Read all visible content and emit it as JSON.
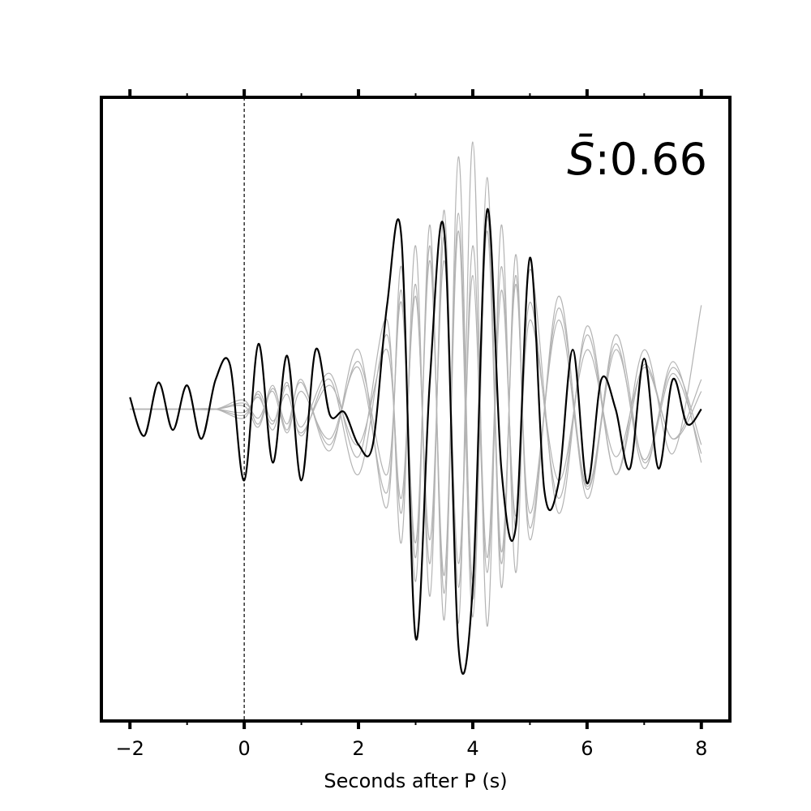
{
  "chart_data": {
    "type": "line",
    "title": "",
    "xlabel": "Seconds after P (s)",
    "ylabel": "",
    "xlim": [
      -2.5,
      8.5
    ],
    "ylim": [
      -1.05,
      1.05
    ],
    "x_ticks": [
      -2,
      0,
      2,
      4,
      6,
      8
    ],
    "x_tick_labels": [
      "−2",
      "0",
      "2",
      "4",
      "6",
      "8"
    ],
    "y_ticks_shown": false,
    "grid": false,
    "legend": "none",
    "reference_line": {
      "x": 0,
      "style": "dashed",
      "color": "#000000"
    },
    "annotation": {
      "symbol": "S̄",
      "separator": ":",
      "value": "0.66",
      "placement": "top-right"
    },
    "colors": {
      "main": "#000000",
      "background_traces": "#b3b3b3"
    },
    "series": [
      {
        "role": "main",
        "x": [
          -2.0,
          -1.75,
          -1.5,
          -1.25,
          -1.0,
          -0.75,
          -0.5,
          -0.25,
          0.0,
          0.25,
          0.5,
          0.75,
          1.0,
          1.25,
          1.5,
          1.75,
          2.0,
          2.25,
          2.5,
          2.75,
          3.0,
          3.25,
          3.5,
          3.75,
          4.0,
          4.25,
          4.5,
          4.75,
          5.0,
          5.25,
          5.5,
          5.75,
          6.0,
          6.25,
          6.5,
          6.75,
          7.0,
          7.25,
          7.5,
          7.75,
          8.0
        ],
        "y": [
          0.04,
          -0.09,
          0.09,
          -0.07,
          0.08,
          -0.1,
          0.1,
          0.15,
          -0.24,
          0.22,
          -0.18,
          0.18,
          -0.24,
          0.2,
          -0.02,
          -0.01,
          -0.12,
          -0.12,
          0.35,
          0.58,
          -0.77,
          0.1,
          0.6,
          -0.8,
          -0.6,
          0.67,
          -0.2,
          -0.4,
          0.51,
          -0.27,
          -0.25,
          0.2,
          -0.25,
          0.1,
          0.0,
          -0.2,
          0.17,
          -0.2,
          0.1,
          -0.05,
          0.0
        ]
      },
      {
        "role": "background",
        "x": [
          -2.0,
          -1.5,
          -1.0,
          -0.5,
          0.0,
          0.25,
          0.5,
          0.75,
          1.0,
          1.5,
          2.0,
          2.5,
          2.75,
          3.0,
          3.25,
          3.5,
          3.75,
          4.0,
          4.25,
          4.5,
          4.75,
          5.0,
          5.5,
          6.0,
          6.5,
          7.0,
          7.5,
          8.0
        ],
        "y": [
          0.0,
          0.0,
          0.0,
          0.0,
          -0.02,
          0.05,
          -0.07,
          0.08,
          -0.06,
          0.12,
          -0.16,
          0.3,
          -0.45,
          0.55,
          -0.63,
          0.67,
          -0.72,
          0.9,
          -0.73,
          0.62,
          -0.55,
          0.47,
          -0.35,
          0.28,
          -0.22,
          0.2,
          -0.15,
          0.35
        ]
      },
      {
        "role": "background",
        "x": [
          -2.0,
          -1.5,
          -1.0,
          -0.5,
          0.0,
          0.25,
          0.5,
          0.75,
          1.0,
          1.5,
          2.0,
          2.5,
          2.75,
          3.0,
          3.25,
          3.5,
          3.75,
          4.0,
          4.25,
          4.5,
          4.75,
          5.0,
          5.5,
          6.0,
          6.5,
          7.0,
          7.5,
          8.0
        ],
        "y": [
          0.0,
          0.0,
          0.0,
          0.0,
          0.03,
          -0.05,
          0.08,
          -0.07,
          0.1,
          -0.14,
          0.2,
          -0.33,
          0.48,
          -0.58,
          0.62,
          -0.71,
          0.85,
          -0.64,
          0.78,
          -0.6,
          0.52,
          -0.44,
          0.38,
          -0.3,
          0.25,
          -0.18,
          0.12,
          -0.15
        ]
      },
      {
        "role": "background",
        "x": [
          -2.0,
          -1.5,
          -1.0,
          -0.5,
          0.0,
          0.25,
          0.5,
          0.75,
          1.0,
          1.5,
          2.0,
          2.5,
          2.75,
          3.0,
          3.25,
          3.5,
          3.75,
          4.0,
          4.25,
          4.5,
          4.75,
          5.0,
          5.5,
          6.0,
          6.5,
          7.0,
          7.5,
          8.0
        ],
        "y": [
          0.0,
          0.0,
          0.0,
          0.0,
          -0.01,
          0.04,
          -0.05,
          0.09,
          -0.09,
          0.1,
          -0.22,
          0.25,
          -0.35,
          0.42,
          -0.52,
          0.58,
          -0.6,
          0.55,
          -0.5,
          0.48,
          -0.4,
          0.36,
          -0.3,
          0.25,
          -0.22,
          0.15,
          -0.1,
          0.1
        ]
      },
      {
        "role": "background",
        "x": [
          -2.0,
          -1.5,
          -1.0,
          -0.5,
          0.0,
          0.25,
          0.5,
          0.75,
          1.0,
          1.5,
          2.0,
          2.5,
          2.75,
          3.0,
          3.25,
          3.5,
          3.75,
          4.0,
          4.25,
          4.5,
          4.75,
          5.0,
          5.5,
          6.0,
          6.5,
          7.0,
          7.5,
          8.0
        ],
        "y": [
          0.0,
          0.0,
          0.0,
          0.0,
          0.02,
          -0.03,
          0.06,
          -0.08,
          0.06,
          -0.1,
          0.14,
          -0.28,
          0.4,
          -0.5,
          0.55,
          -0.62,
          0.6,
          -0.7,
          0.65,
          -0.48,
          0.42,
          -0.35,
          0.3,
          -0.27,
          0.2,
          -0.17,
          0.14,
          -0.12
        ]
      },
      {
        "role": "background",
        "x": [
          -2.0,
          -1.5,
          -1.0,
          -0.5,
          0.0,
          0.25,
          0.5,
          0.75,
          1.0,
          1.5,
          2.0,
          2.5,
          2.75,
          3.0,
          3.25,
          3.5,
          3.75,
          4.0,
          4.25,
          4.5,
          4.75,
          5.0,
          5.5,
          6.0,
          6.5,
          7.0,
          7.5,
          8.0
        ],
        "y": [
          0.0,
          0.0,
          0.0,
          0.0,
          -0.03,
          0.06,
          -0.04,
          0.05,
          -0.08,
          0.08,
          -0.12,
          0.2,
          -0.3,
          0.38,
          -0.44,
          0.5,
          -0.52,
          0.45,
          -0.55,
          0.4,
          -0.36,
          0.3,
          -0.24,
          0.2,
          -0.16,
          0.14,
          -0.1,
          0.06
        ]
      },
      {
        "role": "background",
        "x": [
          -2.0,
          -1.5,
          -1.0,
          -0.5,
          0.0,
          0.25,
          0.5,
          0.75,
          1.0,
          1.5,
          2.0,
          2.5,
          2.75,
          3.0,
          3.25,
          3.5,
          3.75,
          4.0,
          4.25,
          4.5,
          4.75,
          5.0,
          5.5,
          6.0,
          6.5,
          7.0,
          7.5,
          8.0
        ],
        "y": [
          0.0,
          0.0,
          0.0,
          0.0,
          0.01,
          -0.06,
          0.07,
          -0.05,
          0.09,
          -0.12,
          0.16,
          -0.22,
          0.36,
          -0.45,
          0.5,
          -0.56,
          0.66,
          -0.58,
          0.6,
          -0.52,
          0.45,
          -0.4,
          0.34,
          -0.26,
          0.22,
          -0.2,
          0.16,
          -0.18
        ]
      }
    ]
  }
}
